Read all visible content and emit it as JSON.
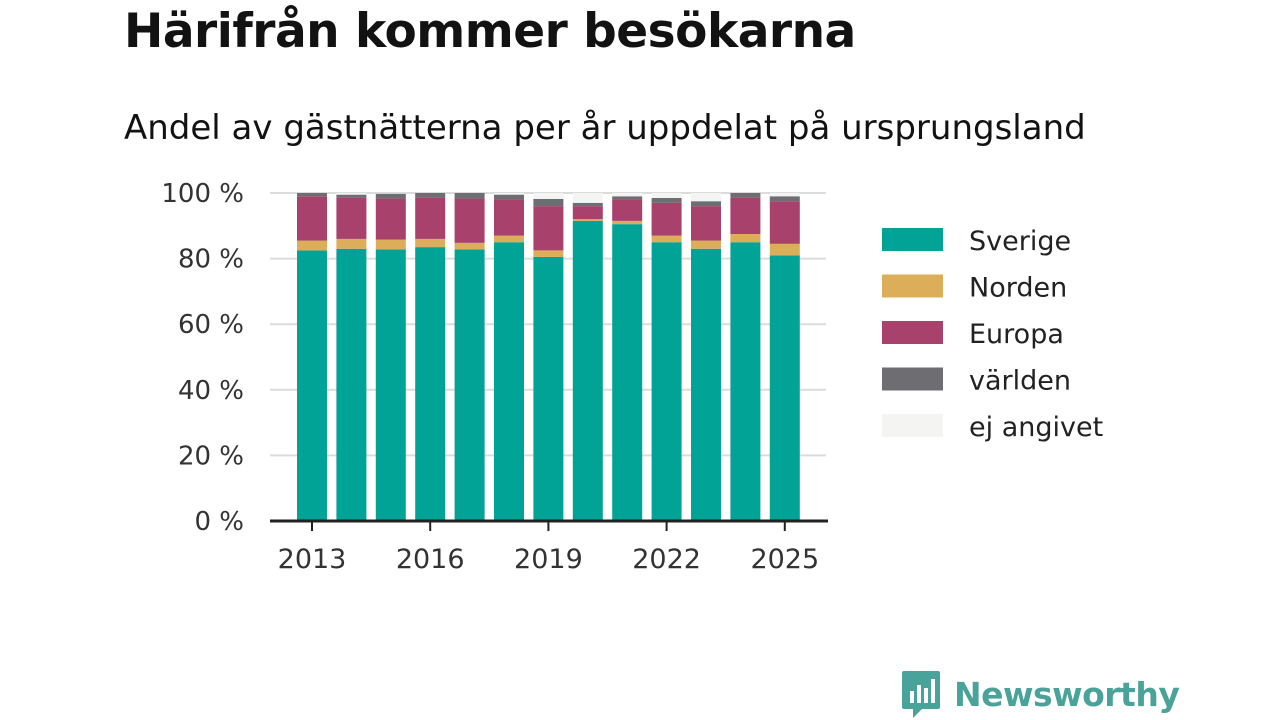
{
  "title": "Härifrån kommer besökarna",
  "subtitle": "Andel av gästnätterna per år uppdelat på ursprungsland",
  "brand": {
    "name": "Newsworthy",
    "icon": "newsworthy-logo-icon",
    "color": "#4aa39a"
  },
  "chart_data": {
    "type": "bar",
    "stacked": true,
    "title": "Härifrån kommer besökarna",
    "subtitle": "Andel av gästnätterna per år uppdelat på ursprungsland",
    "xlabel": "",
    "ylabel": "",
    "ylim": [
      0,
      100
    ],
    "y_ticks": [
      "0 %",
      "20 %",
      "40 %",
      "60 %",
      "80 %",
      "100 %"
    ],
    "y_tick_values": [
      0,
      20,
      40,
      60,
      80,
      100
    ],
    "x_ticks": [
      "2013",
      "2016",
      "2019",
      "2022",
      "2025"
    ],
    "categories": [
      "2013",
      "2014",
      "2015",
      "2016",
      "2017",
      "2018",
      "2019",
      "2020",
      "2021",
      "2022",
      "2023",
      "2024",
      "2025"
    ],
    "grid": "horizontal",
    "legend_position": "right",
    "series": [
      {
        "name": "Sverige",
        "color": "#00a396",
        "values": [
          82.5,
          83,
          82.8,
          83.5,
          82.8,
          85,
          80.5,
          91.5,
          90.5,
          85,
          83,
          85,
          81
        ]
      },
      {
        "name": "Norden",
        "color": "#dcae5a",
        "values": [
          3,
          3,
          3,
          2.5,
          2,
          2,
          2,
          0.5,
          1,
          2,
          2.5,
          2.5,
          3.5
        ]
      },
      {
        "name": "Europa",
        "color": "#a8426c",
        "values": [
          13.5,
          12.5,
          12.5,
          12.5,
          13.5,
          11,
          13.5,
          4,
          6.5,
          10,
          10.5,
          11,
          13
        ]
      },
      {
        "name": "världen",
        "color": "#6e6d72",
        "values": [
          1,
          1,
          1.5,
          1.5,
          1.7,
          1.5,
          2.2,
          1,
          1,
          1.5,
          1.5,
          1.5,
          1.5
        ]
      },
      {
        "name": "ej angivet",
        "color": "#f4f4f2",
        "values": [
          0,
          0.5,
          0.2,
          0,
          0,
          0.5,
          1.8,
          3,
          1,
          1.5,
          2.5,
          0,
          1
        ]
      }
    ]
  }
}
